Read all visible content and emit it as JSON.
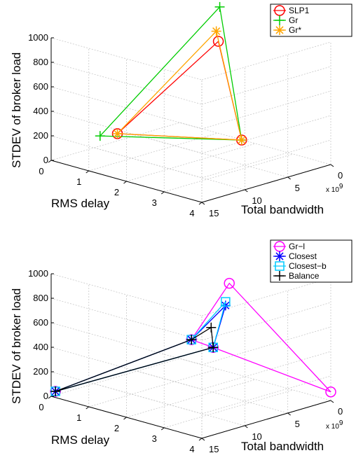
{
  "chart_data": [
    {
      "type": "scatter",
      "projection": "3d",
      "zlabel": "STDEV of broker load",
      "xlabel": "RMS delay",
      "ylabel": "Total bandwidth",
      "y_exponent_label": "x 10",
      "y_exponent": "9",
      "xlim": [
        0,
        4
      ],
      "ylim": [
        0,
        15
      ],
      "zlim": [
        0,
        1000
      ],
      "x_ticks": [
        "0",
        "1",
        "2",
        "3",
        "4"
      ],
      "y_ticks": [
        "0",
        "5",
        "10",
        "15"
      ],
      "z_ticks": [
        "0",
        "200",
        "400",
        "600",
        "800",
        "1000"
      ],
      "grid": true,
      "legend_position": "top-right",
      "series": [
        {
          "name": "SLP1",
          "color": "#ff0000",
          "marker": "circle",
          "points": [
            [
              0.8,
              10.8,
              200
            ],
            [
              3.3,
              7.3,
              290
            ],
            [
              1.7,
              3.0,
              870
            ]
          ]
        },
        {
          "name": "Gr",
          "color": "#00cc00",
          "marker": "plus",
          "points": [
            [
              0.5,
              11.5,
              170
            ],
            [
              3.3,
              7.3,
              290
            ],
            [
              1.6,
              2.4,
              1130
            ]
          ]
        },
        {
          "name": "Gr*",
          "color": "#ffa500",
          "marker": "asterisk",
          "points": [
            [
              0.8,
              10.8,
              200
            ],
            [
              3.3,
              7.3,
              290
            ],
            [
              1.6,
              2.8,
              940
            ]
          ]
        }
      ]
    },
    {
      "type": "scatter",
      "projection": "3d",
      "zlabel": "STDEV of broker load",
      "xlabel": "RMS delay",
      "ylabel": "Total bandwidth",
      "y_exponent_label": "x 10",
      "y_exponent": "9",
      "xlim": [
        0,
        4
      ],
      "ylim": [
        0,
        15
      ],
      "zlim": [
        0,
        1000
      ],
      "x_ticks": [
        "0",
        "1",
        "2",
        "3",
        "4"
      ],
      "y_ticks": [
        "0",
        "5",
        "10",
        "15"
      ],
      "z_ticks": [
        "0",
        "200",
        "400",
        "600",
        "800",
        "1000"
      ],
      "grid": true,
      "legend_position": "top-right",
      "series": [
        {
          "name": "Gr−l",
          "color": "#ff00ff",
          "marker": "circle",
          "points": [
            [
              0.0,
              14.5,
              30
            ],
            [
              1.1,
              3.5,
              320
            ],
            [
              1.7,
              3.6,
              310
            ],
            [
              4.0,
              0.0,
              70
            ],
            [
              1.9,
              2.6,
              830
            ]
          ]
        },
        {
          "name": "Closest",
          "color": "#0000ff",
          "marker": "asterisk",
          "points": [
            [
              0.0,
              14.5,
              30
            ],
            [
              1.1,
              3.5,
              320
            ],
            [
              1.7,
              3.6,
              310
            ],
            [
              1.8,
              2.6,
              640
            ]
          ]
        },
        {
          "name": "Closest−b",
          "color": "#00ccff",
          "marker": "square",
          "points": [
            [
              0.0,
              14.5,
              30
            ],
            [
              1.1,
              3.5,
              320
            ],
            [
              1.7,
              3.6,
              310
            ],
            [
              1.8,
              2.6,
              670
            ]
          ]
        },
        {
          "name": "Balance",
          "color": "#000000",
          "marker": "plus",
          "points": [
            [
              0.0,
              14.5,
              30
            ],
            [
              1.1,
              3.5,
              320
            ],
            [
              1.7,
              3.6,
              310
            ],
            [
              1.6,
              3.4,
              460
            ]
          ]
        }
      ]
    }
  ]
}
